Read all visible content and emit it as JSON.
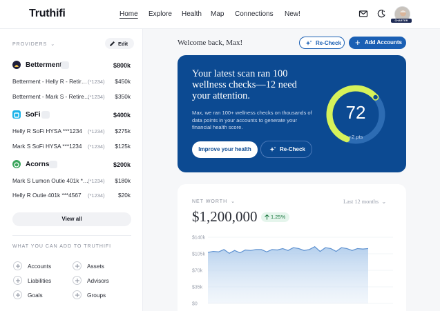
{
  "app": {
    "brand": "Truthifi"
  },
  "nav": {
    "items": [
      {
        "label": "Home",
        "active": true
      },
      {
        "label": "Explore",
        "active": false
      },
      {
        "label": "Health",
        "active": false
      },
      {
        "label": "Map",
        "active": false
      },
      {
        "label": "Connections",
        "active": false
      },
      {
        "label": "New!",
        "active": false
      }
    ],
    "icons": [
      "mail-icon",
      "theme-toggle-icon"
    ],
    "avatar_badge": "CHARTER"
  },
  "sidebar": {
    "providers_label": "PROVIDERS",
    "edit_label": "Edit",
    "providers": [
      {
        "name": "Betterment",
        "total": "$800k",
        "logo_color": "#1e1f3b",
        "accounts": [
          {
            "name": "Betterment - Helly R - Retir…",
            "mask": "(*1234)",
            "value": "$450k"
          },
          {
            "name": "Betterment - Mark S - Retire…",
            "mask": "(*1234)",
            "value": "$350k"
          }
        ]
      },
      {
        "name": "SoFi",
        "total": "$400k",
        "logo_color": "#1cb3e8",
        "accounts": [
          {
            "name": "Helly R SoFi HYSA ***1234",
            "mask": "(*1234)",
            "value": "$275k"
          },
          {
            "name": "Mark S SoFi HYSA ***1234",
            "mask": "(*1234)",
            "value": "$125k"
          }
        ]
      },
      {
        "name": "Acorns",
        "total": "$200k",
        "logo_color": "#3aa55c",
        "accounts": [
          {
            "name": "Mark S Lumon Outie 401k *…",
            "mask": "(*1234)",
            "value": "$180k"
          },
          {
            "name": "Helly R Outie 401k ***4567",
            "mask": "(*1234)",
            "value": "$20k"
          }
        ]
      }
    ],
    "view_all_label": "View all",
    "add_label": "WHAT YOU CAN ADD TO TRUTHIFI",
    "add_items": [
      "Accounts",
      "Assets",
      "Liabilities",
      "Advisors",
      "Goals",
      "Groups"
    ]
  },
  "main": {
    "welcome": "Welcome back, Max!",
    "recheck_label": "Re-Check",
    "add_accounts_label": "Add Accounts",
    "scan": {
      "title": "Your latest scan ran 100 wellness checks—12 need your attention.",
      "subtitle": "Max, we ran 100+ wellness checks on thousands of data points in your accounts to generate your financial health score.",
      "improve_label": "Improve your health",
      "recheck_label": "Re-Check",
      "score": "72",
      "score_fraction": 0.72,
      "delta": "+2 pts"
    },
    "net_worth": {
      "label": "NET WORTH",
      "range": "Last 12 months",
      "value": "$1,200,000",
      "change": "1.25%"
    }
  },
  "colors": {
    "accent": "#1a5fb4",
    "scan_bg": "#0c4a92",
    "gauge": "#d6f25a",
    "gauge_track": "#2d6cb3",
    "positive": "#1f7a43"
  },
  "chart_data": {
    "type": "area",
    "ylabel": "",
    "yticks": [
      "$140k",
      "$105k",
      "$70k",
      "$35k",
      "$0"
    ],
    "ylim": [
      0,
      140
    ],
    "values": [
      108,
      110,
      109,
      114,
      106,
      112,
      107,
      113,
      112,
      114,
      114,
      109,
      114,
      113,
      116,
      112,
      118,
      116,
      112,
      114,
      120,
      110,
      118,
      116,
      110,
      118,
      116,
      112,
      116,
      115,
      116
    ]
  }
}
